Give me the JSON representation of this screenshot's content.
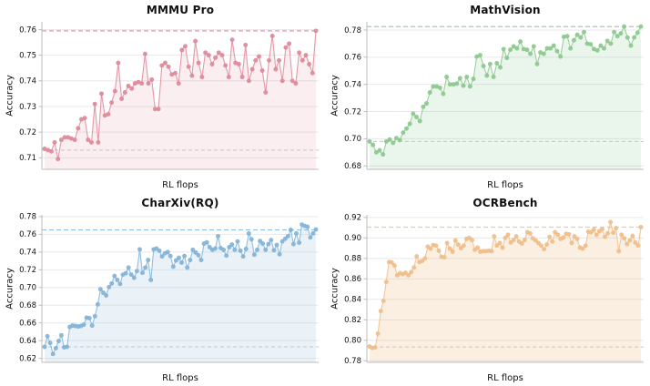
{
  "figure": {
    "background": "#ffffff",
    "grid": "horizontal",
    "legend": "none"
  },
  "chart_data": [
    {
      "type": "line",
      "title": "MMMU Pro",
      "xlabel": "RL flops",
      "ylabel": "Accuracy",
      "color": "#dd8a99",
      "fill_opacity": 0.15,
      "final_dash": 0.7595,
      "initial_dash": 0.713,
      "ylim": [
        0.7055,
        0.763
      ],
      "yticks": [
        0.71,
        0.72,
        0.73,
        0.74,
        0.75,
        0.76
      ],
      "values": [
        0.7135,
        0.713,
        0.7125,
        0.716,
        0.7095,
        0.717,
        0.718,
        0.718,
        0.7175,
        0.717,
        0.7215,
        0.725,
        0.7255,
        0.717,
        0.716,
        0.731,
        0.716,
        0.735,
        0.7265,
        0.727,
        0.7315,
        0.736,
        0.747,
        0.733,
        0.7355,
        0.738,
        0.737,
        0.739,
        0.7395,
        0.739,
        0.7505,
        0.739,
        0.7405,
        0.729,
        0.729,
        0.746,
        0.747,
        0.7455,
        0.7425,
        0.743,
        0.739,
        0.752,
        0.7535,
        0.7455,
        0.742,
        0.7555,
        0.747,
        0.7415,
        0.751,
        0.75,
        0.7465,
        0.749,
        0.751,
        0.75,
        0.746,
        0.7415,
        0.756,
        0.747,
        0.7465,
        0.7415,
        0.754,
        0.74,
        0.7445,
        0.748,
        0.7495,
        0.744,
        0.7355,
        0.748,
        0.7575,
        0.7445,
        0.748,
        0.74,
        0.753,
        0.7545,
        0.74,
        0.739,
        0.751,
        0.748,
        0.75,
        0.7465,
        0.743,
        0.7595
      ]
    },
    {
      "type": "line",
      "title": "MathVision",
      "xlabel": "RL flops",
      "ylabel": "Accuracy",
      "color": "#8cc98e",
      "fill_opacity": 0.18,
      "final_dash": 0.7825,
      "initial_dash": 0.698,
      "ylim": [
        0.6775,
        0.786
      ],
      "yticks": [
        0.68,
        0.7,
        0.72,
        0.74,
        0.76,
        0.78
      ],
      "values": [
        0.698,
        0.6955,
        0.69,
        0.6915,
        0.6885,
        0.698,
        0.6995,
        0.697,
        0.7005,
        0.699,
        0.7045,
        0.7075,
        0.711,
        0.7185,
        0.716,
        0.713,
        0.7235,
        0.726,
        0.734,
        0.7385,
        0.7385,
        0.7375,
        0.733,
        0.7455,
        0.74,
        0.74,
        0.7405,
        0.7445,
        0.739,
        0.7455,
        0.7385,
        0.744,
        0.7605,
        0.7615,
        0.7535,
        0.7465,
        0.755,
        0.7455,
        0.7555,
        0.7525,
        0.766,
        0.7595,
        0.7655,
        0.768,
        0.7665,
        0.7715,
        0.766,
        0.7655,
        0.7625,
        0.768,
        0.755,
        0.7635,
        0.7625,
        0.7665,
        0.7665,
        0.7685,
        0.7645,
        0.7605,
        0.775,
        0.7755,
        0.7665,
        0.7725,
        0.7765,
        0.7745,
        0.7785,
        0.77,
        0.7695,
        0.766,
        0.765,
        0.7685,
        0.7665,
        0.772,
        0.77,
        0.7785,
        0.7755,
        0.7775,
        0.7825,
        0.7745,
        0.7685,
        0.7745,
        0.778,
        0.7825
      ]
    },
    {
      "type": "line",
      "title": "CharXiv(RQ)",
      "xlabel": "RL flops",
      "ylabel": "Accuracy",
      "color": "#83b4d8",
      "fill_opacity": 0.17,
      "final_dash": 0.765,
      "initial_dash": 0.633,
      "ylim": [
        0.6155,
        0.782
      ],
      "yticks": [
        0.62,
        0.64,
        0.66,
        0.68,
        0.7,
        0.72,
        0.74,
        0.76,
        0.78
      ],
      "values": [
        0.633,
        0.645,
        0.6375,
        0.625,
        0.6315,
        0.6395,
        0.646,
        0.6325,
        0.633,
        0.6555,
        0.657,
        0.6565,
        0.656,
        0.6565,
        0.658,
        0.666,
        0.6655,
        0.657,
        0.6675,
        0.681,
        0.698,
        0.694,
        0.691,
        0.7005,
        0.7045,
        0.713,
        0.7085,
        0.704,
        0.7145,
        0.716,
        0.7225,
        0.7145,
        0.711,
        0.7185,
        0.743,
        0.7165,
        0.7225,
        0.731,
        0.7085,
        0.743,
        0.744,
        0.7415,
        0.735,
        0.7385,
        0.74,
        0.7355,
        0.7235,
        0.7305,
        0.7335,
        0.728,
        0.7355,
        0.7225,
        0.731,
        0.7425,
        0.7395,
        0.7365,
        0.731,
        0.7495,
        0.751,
        0.7455,
        0.7425,
        0.744,
        0.758,
        0.7445,
        0.7425,
        0.736,
        0.7455,
        0.7485,
        0.7425,
        0.752,
        0.7415,
        0.735,
        0.7435,
        0.761,
        0.7545,
        0.737,
        0.7425,
        0.7525,
        0.7495,
        0.7425,
        0.749,
        0.7535,
        0.742,
        0.748,
        0.7375,
        0.752,
        0.755,
        0.758,
        0.765,
        0.749,
        0.761,
        0.7505,
        0.771,
        0.7695,
        0.7685,
        0.7565,
        0.761,
        0.7655
      ]
    },
    {
      "type": "line",
      "title": "OCRBench",
      "xlabel": "RL flops",
      "ylabel": "Accuracy",
      "color": "#f0be8b",
      "fill_opacity": 0.25,
      "final_dash": 0.9105,
      "initial_dash": 0.7935,
      "ylim": [
        0.7785,
        0.9225
      ],
      "yticks": [
        0.78,
        0.8,
        0.82,
        0.84,
        0.86,
        0.88,
        0.9,
        0.92
      ],
      "values": [
        0.794,
        0.7925,
        0.793,
        0.8065,
        0.8285,
        0.8385,
        0.857,
        0.8765,
        0.876,
        0.873,
        0.8635,
        0.8655,
        0.8645,
        0.866,
        0.8635,
        0.8665,
        0.871,
        0.882,
        0.8765,
        0.8775,
        0.88,
        0.8915,
        0.8895,
        0.893,
        0.8925,
        0.8875,
        0.8815,
        0.881,
        0.895,
        0.8895,
        0.8865,
        0.8975,
        0.8935,
        0.89,
        0.8925,
        0.899,
        0.9,
        0.898,
        0.8885,
        0.8905,
        0.8865,
        0.887,
        0.887,
        0.8875,
        0.887,
        0.9015,
        0.8925,
        0.895,
        0.8905,
        0.9,
        0.903,
        0.8955,
        0.898,
        0.9015,
        0.8965,
        0.8945,
        0.898,
        0.9055,
        0.9045,
        0.8995,
        0.8975,
        0.895,
        0.8925,
        0.889,
        0.8935,
        0.901,
        0.8965,
        0.9055,
        0.903,
        0.899,
        0.9005,
        0.904,
        0.9035,
        0.895,
        0.9015,
        0.899,
        0.8905,
        0.8895,
        0.8925,
        0.906,
        0.9055,
        0.908,
        0.903,
        0.9065,
        0.9085,
        0.901,
        0.9045,
        0.9155,
        0.905,
        0.9095,
        0.887,
        0.903,
        0.8995,
        0.894,
        0.8975,
        0.902,
        0.8955,
        0.8925,
        0.9105
      ]
    }
  ]
}
